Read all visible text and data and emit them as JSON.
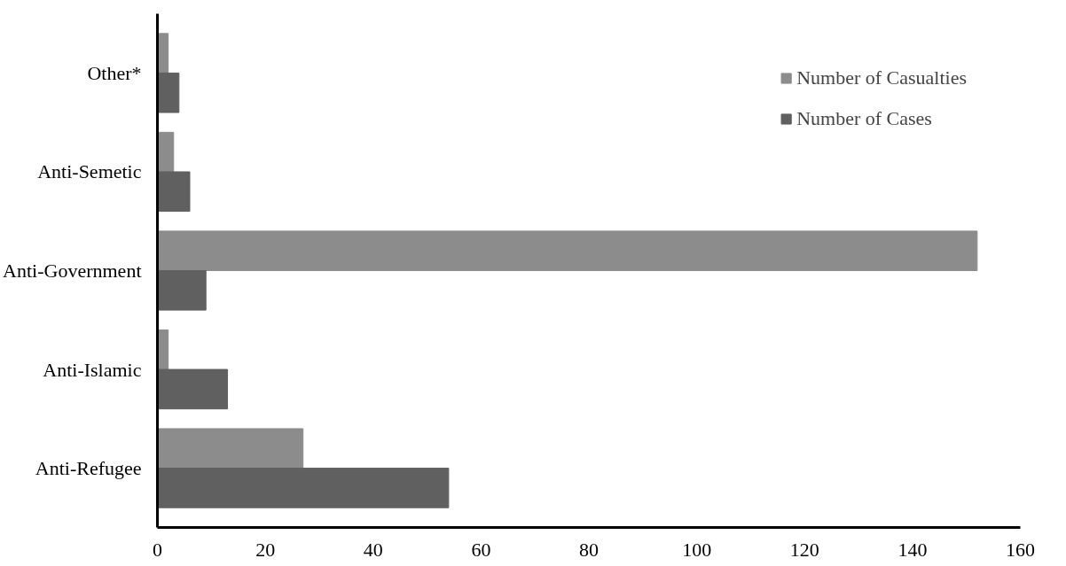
{
  "chart_data": {
    "type": "bar",
    "orientation": "horizontal",
    "categories": [
      "Other*",
      "Anti-Semetic",
      "Anti-Government",
      "Anti-Islamic",
      "Anti-Refugee"
    ],
    "series": [
      {
        "name": "Number of Casualties",
        "color": "#8c8c8c",
        "values": [
          2,
          3,
          152,
          2,
          27
        ]
      },
      {
        "name": "Number of Cases",
        "color": "#606060",
        "values": [
          4,
          6,
          9,
          13,
          54
        ]
      }
    ],
    "xlim": [
      0,
      160
    ],
    "xticks": [
      0,
      20,
      40,
      60,
      80,
      100,
      120,
      140,
      160
    ],
    "grid": false,
    "legend": "top right"
  }
}
